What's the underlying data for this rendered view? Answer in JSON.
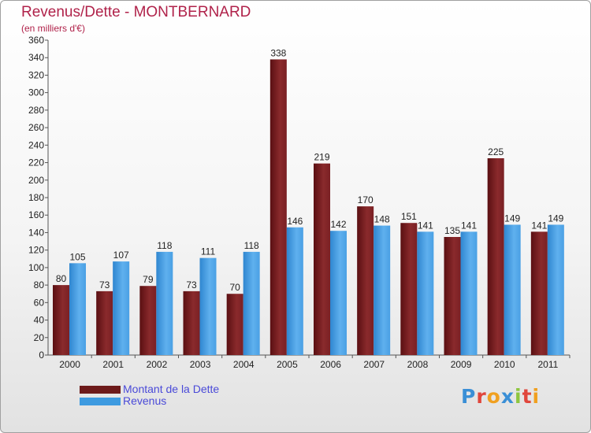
{
  "title": "Revenus/Dette - MONTBERNARD",
  "subtitle": "(en milliers d'€)",
  "logo": "Proxiti",
  "colors": {
    "dette": "#6d1a1a",
    "revenus": "#3d9ae0",
    "title": "#b0224a",
    "legend_text": "#4a4ad8"
  },
  "chart_data": {
    "type": "bar",
    "title": "Revenus/Dette - MONTBERNARD",
    "subtitle": "(en milliers d'€)",
    "xlabel": "",
    "ylabel": "",
    "ylim": [
      0,
      360
    ],
    "yticks": [
      0,
      20,
      40,
      60,
      80,
      100,
      120,
      140,
      160,
      180,
      200,
      220,
      240,
      260,
      280,
      300,
      320,
      340,
      360
    ],
    "grid": false,
    "legend_position": "bottom-left",
    "categories": [
      "2000",
      "2001",
      "2002",
      "2003",
      "2004",
      "2005",
      "2006",
      "2007",
      "2008",
      "2009",
      "2010",
      "2011"
    ],
    "series": [
      {
        "name": "Montant de la Dette",
        "color": "#6d1a1a",
        "values": [
          80,
          73,
          79,
          73,
          70,
          338,
          219,
          170,
          151,
          135,
          225,
          141
        ]
      },
      {
        "name": "Revenus",
        "color": "#3d9ae0",
        "values": [
          105,
          107,
          118,
          111,
          118,
          146,
          142,
          148,
          141,
          141,
          149,
          149
        ]
      }
    ]
  }
}
